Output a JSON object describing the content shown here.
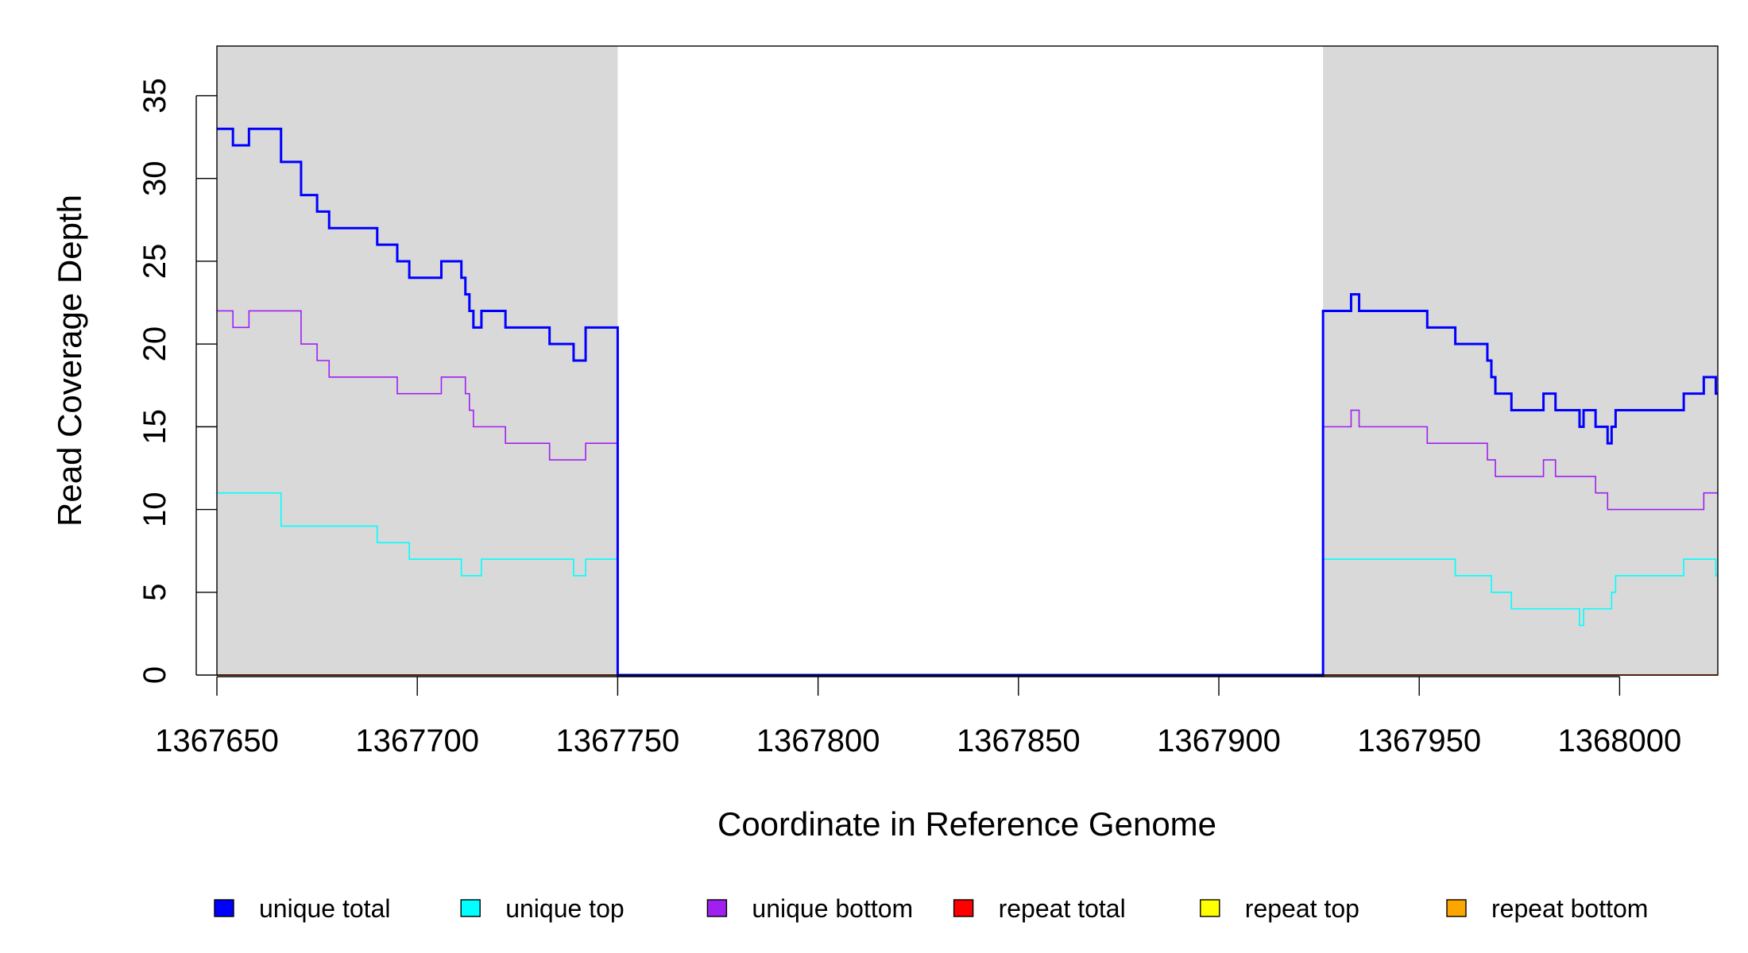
{
  "chart_data": {
    "type": "line",
    "title": "",
    "xlabel": "Coordinate in Reference Genome",
    "ylabel": "Read Coverage Depth",
    "xlim": [
      1367650,
      1368024.5
    ],
    "ylim": [
      0,
      38
    ],
    "xticks": [
      1367650,
      1367700,
      1367750,
      1367800,
      1367850,
      1367900,
      1367950,
      1368000
    ],
    "yticks": [
      0,
      5,
      10,
      15,
      20,
      25,
      30,
      35
    ],
    "grid": false,
    "legend_position": "bottom",
    "shaded_regions": [
      {
        "from": 1367650,
        "to": 1367750,
        "color": "#d9d9d9"
      },
      {
        "from": 1367926,
        "to": 1368024.5,
        "color": "#d9d9d9"
      }
    ],
    "step_style": "step-after",
    "series": [
      {
        "name": "unique total",
        "color": "#0000ff",
        "width": 3,
        "points": [
          [
            1367650,
            33
          ],
          [
            1367654,
            32
          ],
          [
            1367658,
            33
          ],
          [
            1367666,
            31
          ],
          [
            1367671,
            29
          ],
          [
            1367675,
            28
          ],
          [
            1367678,
            27
          ],
          [
            1367690,
            26
          ],
          [
            1367695,
            25
          ],
          [
            1367698,
            24
          ],
          [
            1367706,
            25
          ],
          [
            1367711,
            24
          ],
          [
            1367712,
            23
          ],
          [
            1367713,
            22
          ],
          [
            1367714,
            21
          ],
          [
            1367716,
            22
          ],
          [
            1367722,
            21
          ],
          [
            1367733,
            20
          ],
          [
            1367739,
            19
          ],
          [
            1367742,
            21
          ],
          [
            1367750,
            0
          ],
          [
            1367926,
            22
          ],
          [
            1367933,
            23
          ],
          [
            1367935,
            22
          ],
          [
            1367952,
            21
          ],
          [
            1367959,
            20
          ],
          [
            1367967,
            19
          ],
          [
            1367968,
            18
          ],
          [
            1367969,
            17
          ],
          [
            1367973,
            16
          ],
          [
            1367981,
            17
          ],
          [
            1367984,
            16
          ],
          [
            1367990,
            15
          ],
          [
            1367991,
            16
          ],
          [
            1367994,
            15
          ],
          [
            1367997,
            14
          ],
          [
            1367998,
            15
          ],
          [
            1367999,
            16
          ],
          [
            1368016,
            17
          ],
          [
            1368021,
            18
          ],
          [
            1368024,
            17
          ],
          [
            1368024.5,
            17
          ]
        ]
      },
      {
        "name": "unique top",
        "color": "#00ffff",
        "width": 1.6,
        "points": [
          [
            1367650,
            11
          ],
          [
            1367666,
            9
          ],
          [
            1367690,
            8
          ],
          [
            1367698,
            7
          ],
          [
            1367711,
            6
          ],
          [
            1367716,
            7
          ],
          [
            1367739,
            6
          ],
          [
            1367742,
            7
          ],
          [
            1367750,
            0
          ],
          [
            1367926,
            7
          ],
          [
            1367959,
            6
          ],
          [
            1367968,
            5
          ],
          [
            1367973,
            4
          ],
          [
            1367990,
            3
          ],
          [
            1367991,
            4
          ],
          [
            1367998,
            5
          ],
          [
            1367999,
            6
          ],
          [
            1368016,
            7
          ],
          [
            1368024,
            6
          ],
          [
            1368024.5,
            6
          ]
        ]
      },
      {
        "name": "unique bottom",
        "color": "#a020f0",
        "width": 1.6,
        "points": [
          [
            1367650,
            22
          ],
          [
            1367654,
            21
          ],
          [
            1367658,
            22
          ],
          [
            1367671,
            20
          ],
          [
            1367675,
            19
          ],
          [
            1367678,
            18
          ],
          [
            1367695,
            17
          ],
          [
            1367706,
            18
          ],
          [
            1367712,
            17
          ],
          [
            1367713,
            16
          ],
          [
            1367714,
            15
          ],
          [
            1367722,
            14
          ],
          [
            1367733,
            13
          ],
          [
            1367742,
            14
          ],
          [
            1367750,
            0
          ],
          [
            1367926,
            15
          ],
          [
            1367933,
            16
          ],
          [
            1367935,
            15
          ],
          [
            1367952,
            14
          ],
          [
            1367967,
            13
          ],
          [
            1367969,
            12
          ],
          [
            1367981,
            13
          ],
          [
            1367984,
            12
          ],
          [
            1367994,
            11
          ],
          [
            1367997,
            10
          ],
          [
            1368021,
            11
          ],
          [
            1368024.5,
            11
          ]
        ]
      },
      {
        "name": "repeat total",
        "color": "#ff0000",
        "width": 1.6,
        "points": [
          [
            1367650,
            0
          ],
          [
            1368024.5,
            0
          ]
        ]
      },
      {
        "name": "repeat top",
        "color": "#ffff00",
        "width": 1.6,
        "points": [
          [
            1367650,
            0
          ],
          [
            1368024.5,
            0
          ]
        ]
      },
      {
        "name": "repeat bottom",
        "color": "#ffa500",
        "width": 1.6,
        "points": [
          [
            1367650,
            0
          ],
          [
            1368024.5,
            0
          ]
        ]
      }
    ]
  }
}
